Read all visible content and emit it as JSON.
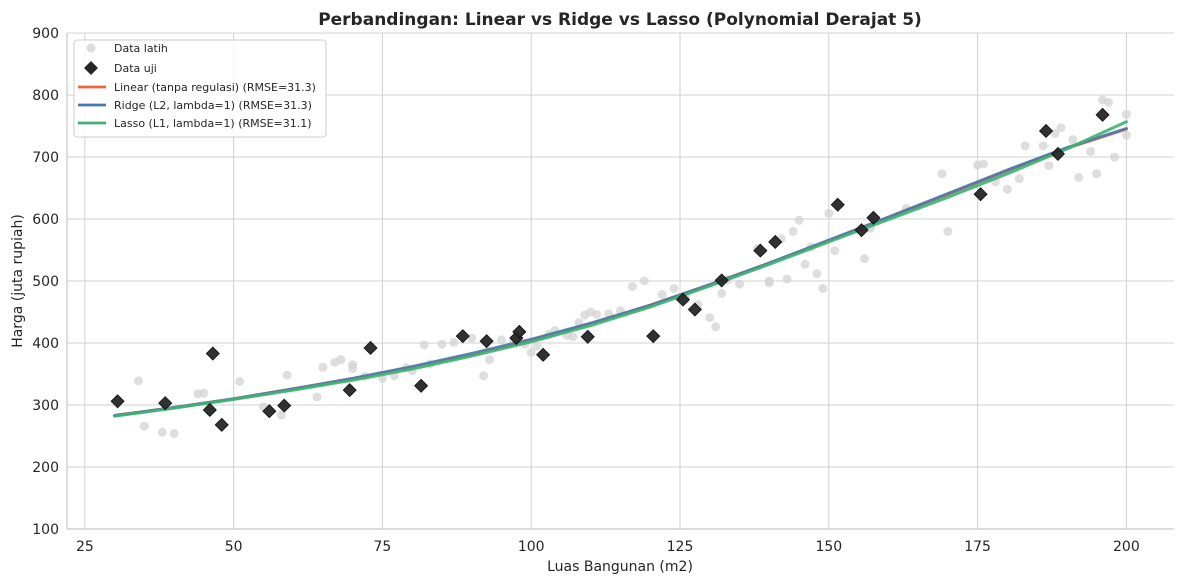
{
  "chart_data": {
    "type": "scatter",
    "title": "Perbandingan: Linear vs Ridge vs Lasso (Polynomial Derajat 5)",
    "xlabel": "Luas Bangunan (m2)",
    "ylabel": "Harga (juta rupiah)",
    "xlim": [
      22,
      208
    ],
    "ylim": [
      100,
      900
    ],
    "xticks": [
      25,
      50,
      75,
      100,
      125,
      150,
      175,
      200
    ],
    "yticks": [
      100,
      200,
      300,
      400,
      500,
      600,
      700,
      800,
      900
    ],
    "grid": true,
    "legend_position": "top-left",
    "colors": {
      "train": "#d3d3d3",
      "test": "#262626",
      "linear": "#f0643c",
      "ridge": "#4a7aa8",
      "lasso": "#3cb371",
      "grid": "#d0d0d0",
      "axis": "#c8c8c8"
    },
    "series": [
      {
        "name": "Data latih",
        "kind": "scatter",
        "marker": "circle",
        "points": [
          [
            34,
            339
          ],
          [
            35,
            266
          ],
          [
            38,
            256
          ],
          [
            40,
            254
          ],
          [
            44,
            318
          ],
          [
            45,
            319
          ],
          [
            51,
            338
          ],
          [
            55,
            297
          ],
          [
            58,
            284
          ],
          [
            59,
            348
          ],
          [
            64,
            313
          ],
          [
            65,
            361
          ],
          [
            67,
            369
          ],
          [
            68,
            373
          ],
          [
            70,
            365
          ],
          [
            70,
            359
          ],
          [
            72,
            346
          ],
          [
            75,
            343
          ],
          [
            77,
            347
          ],
          [
            79,
            360
          ],
          [
            80,
            355
          ],
          [
            82,
            397
          ],
          [
            83,
            366
          ],
          [
            85,
            398
          ],
          [
            87,
            401
          ],
          [
            90,
            408
          ],
          [
            92,
            347
          ],
          [
            93,
            373
          ],
          [
            95,
            405
          ],
          [
            97,
            402
          ],
          [
            99,
            398
          ],
          [
            100,
            385
          ],
          [
            101,
            395
          ],
          [
            103,
            414
          ],
          [
            104,
            420
          ],
          [
            106,
            412
          ],
          [
            107,
            410
          ],
          [
            108,
            433
          ],
          [
            109,
            445
          ],
          [
            110,
            450
          ],
          [
            111,
            446
          ],
          [
            113,
            447
          ],
          [
            115,
            452
          ],
          [
            117,
            491
          ],
          [
            119,
            500
          ],
          [
            122,
            478
          ],
          [
            124,
            488
          ],
          [
            126,
            476
          ],
          [
            128,
            462
          ],
          [
            130,
            441
          ],
          [
            131,
            426
          ],
          [
            132,
            480
          ],
          [
            133,
            502
          ],
          [
            135,
            495
          ],
          [
            138,
            552
          ],
          [
            140,
            500
          ],
          [
            140,
            497
          ],
          [
            142,
            568
          ],
          [
            143,
            503
          ],
          [
            144,
            580
          ],
          [
            145,
            598
          ],
          [
            146,
            527
          ],
          [
            147,
            555
          ],
          [
            148,
            512
          ],
          [
            149,
            488
          ],
          [
            150,
            609
          ],
          [
            151,
            549
          ],
          [
            156,
            536
          ],
          [
            157,
            585
          ],
          [
            163,
            617
          ],
          [
            169,
            673
          ],
          [
            170,
            580
          ],
          [
            175,
            687
          ],
          [
            176,
            689
          ],
          [
            178,
            660
          ],
          [
            180,
            648
          ],
          [
            182,
            665
          ],
          [
            183,
            718
          ],
          [
            186,
            718
          ],
          [
            187,
            686
          ],
          [
            188,
            738
          ],
          [
            189,
            747
          ],
          [
            191,
            728
          ],
          [
            192,
            667
          ],
          [
            194,
            709
          ],
          [
            195,
            673
          ],
          [
            196,
            792
          ],
          [
            197,
            788
          ],
          [
            198,
            700
          ],
          [
            200,
            769
          ],
          [
            200,
            735
          ]
        ]
      },
      {
        "name": "Data uji",
        "kind": "scatter",
        "marker": "diamond",
        "points": [
          [
            30.5,
            306
          ],
          [
            38.5,
            303
          ],
          [
            46,
            292
          ],
          [
            46.5,
            383
          ],
          [
            48,
            268
          ],
          [
            56,
            290
          ],
          [
            58.5,
            299
          ],
          [
            69.5,
            324
          ],
          [
            73,
            392
          ],
          [
            81.5,
            331
          ],
          [
            88.5,
            411
          ],
          [
            92.5,
            403
          ],
          [
            97.5,
            408
          ],
          [
            98,
            418
          ],
          [
            102,
            381
          ],
          [
            109.5,
            410
          ],
          [
            120.5,
            411
          ],
          [
            125.5,
            470
          ],
          [
            127.5,
            454
          ],
          [
            132,
            501
          ],
          [
            138.5,
            549
          ],
          [
            141,
            563
          ],
          [
            151.5,
            623
          ],
          [
            155.5,
            582
          ],
          [
            157.5,
            602
          ],
          [
            175.5,
            640
          ],
          [
            186.5,
            742
          ],
          [
            188.5,
            705
          ],
          [
            196,
            768
          ]
        ]
      },
      {
        "name": "Linear (tanpa regulasi) (RMSE=31.3)",
        "kind": "line",
        "points": [
          [
            30,
            283
          ],
          [
            40,
            296
          ],
          [
            50,
            310
          ],
          [
            60,
            326
          ],
          [
            70,
            342
          ],
          [
            80,
            361
          ],
          [
            90,
            381
          ],
          [
            100,
            404
          ],
          [
            110,
            431
          ],
          [
            120,
            461
          ],
          [
            130,
            494
          ],
          [
            140,
            529
          ],
          [
            150,
            565
          ],
          [
            160,
            602
          ],
          [
            170,
            640
          ],
          [
            180,
            678
          ],
          [
            190,
            714
          ],
          [
            200,
            745
          ]
        ]
      },
      {
        "name": "Ridge (L2, lambda=1) (RMSE=31.3)",
        "kind": "line",
        "points": [
          [
            30,
            283
          ],
          [
            40,
            296
          ],
          [
            50,
            310
          ],
          [
            60,
            326
          ],
          [
            70,
            343
          ],
          [
            80,
            362
          ],
          [
            90,
            383
          ],
          [
            100,
            406
          ],
          [
            110,
            432
          ],
          [
            120,
            461
          ],
          [
            130,
            494
          ],
          [
            140,
            529
          ],
          [
            150,
            566
          ],
          [
            160,
            603
          ],
          [
            170,
            641
          ],
          [
            180,
            679
          ],
          [
            190,
            715
          ],
          [
            200,
            746
          ]
        ]
      },
      {
        "name": "Lasso (L1, lambda=1) (RMSE=31.1)",
        "kind": "line",
        "points": [
          [
            30,
            282
          ],
          [
            40,
            295
          ],
          [
            50,
            309
          ],
          [
            60,
            324
          ],
          [
            70,
            340
          ],
          [
            80,
            358
          ],
          [
            90,
            379
          ],
          [
            100,
            402
          ],
          [
            110,
            428
          ],
          [
            120,
            458
          ],
          [
            130,
            492
          ],
          [
            140,
            527
          ],
          [
            150,
            563
          ],
          [
            160,
            599
          ],
          [
            170,
            635
          ],
          [
            180,
            673
          ],
          [
            190,
            713
          ],
          [
            200,
            757
          ]
        ]
      }
    ]
  }
}
